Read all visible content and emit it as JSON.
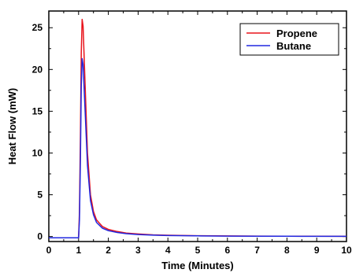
{
  "chart_data": {
    "type": "line",
    "title": "",
    "xlabel": "Time (Minutes)",
    "ylabel": "Heat Flow (mW)",
    "xlim": [
      0,
      10
    ],
    "ylim": [
      -0.6,
      27
    ],
    "xticks": [
      "0",
      "1",
      "2",
      "3",
      "4",
      "5",
      "6",
      "7",
      "8",
      "9",
      "10"
    ],
    "yticks": [
      "0",
      "5",
      "10",
      "15",
      "20",
      "25"
    ],
    "grid": false,
    "legend": "top-right",
    "series": [
      {
        "name": "Propene",
        "color": "#e8141c",
        "x": [
          0,
          0.5,
          1.0,
          1.03,
          1.06,
          1.09,
          1.12,
          1.15,
          1.2,
          1.3,
          1.4,
          1.5,
          1.6,
          1.8,
          2.0,
          2.3,
          2.6,
          3.0,
          3.5,
          4.0,
          5.0,
          6.0,
          7.0,
          8.0,
          9.0,
          10.0
        ],
        "y": [
          -0.15,
          -0.15,
          -0.15,
          3,
          12,
          22,
          26.0,
          25.2,
          20,
          10,
          5,
          3,
          2.0,
          1.2,
          0.85,
          0.6,
          0.42,
          0.3,
          0.2,
          0.15,
          0.1,
          0.07,
          0.05,
          0.04,
          0.03,
          0.02
        ]
      },
      {
        "name": "Butane",
        "color": "#2028e0",
        "x": [
          0,
          0.5,
          1.0,
          1.03,
          1.06,
          1.09,
          1.12,
          1.15,
          1.2,
          1.3,
          1.4,
          1.5,
          1.6,
          1.8,
          2.0,
          2.3,
          2.6,
          3.0,
          3.5,
          4.0,
          5.0,
          6.0,
          7.0,
          8.0,
          9.0,
          10.0
        ],
        "y": [
          -0.15,
          -0.15,
          -0.15,
          2,
          9,
          18,
          21.3,
          20.6,
          16.5,
          8.5,
          4.3,
          2.6,
          1.7,
          1.0,
          0.7,
          0.48,
          0.34,
          0.24,
          0.16,
          0.12,
          0.08,
          0.05,
          0.04,
          0.03,
          0.02,
          0.02
        ]
      }
    ]
  }
}
